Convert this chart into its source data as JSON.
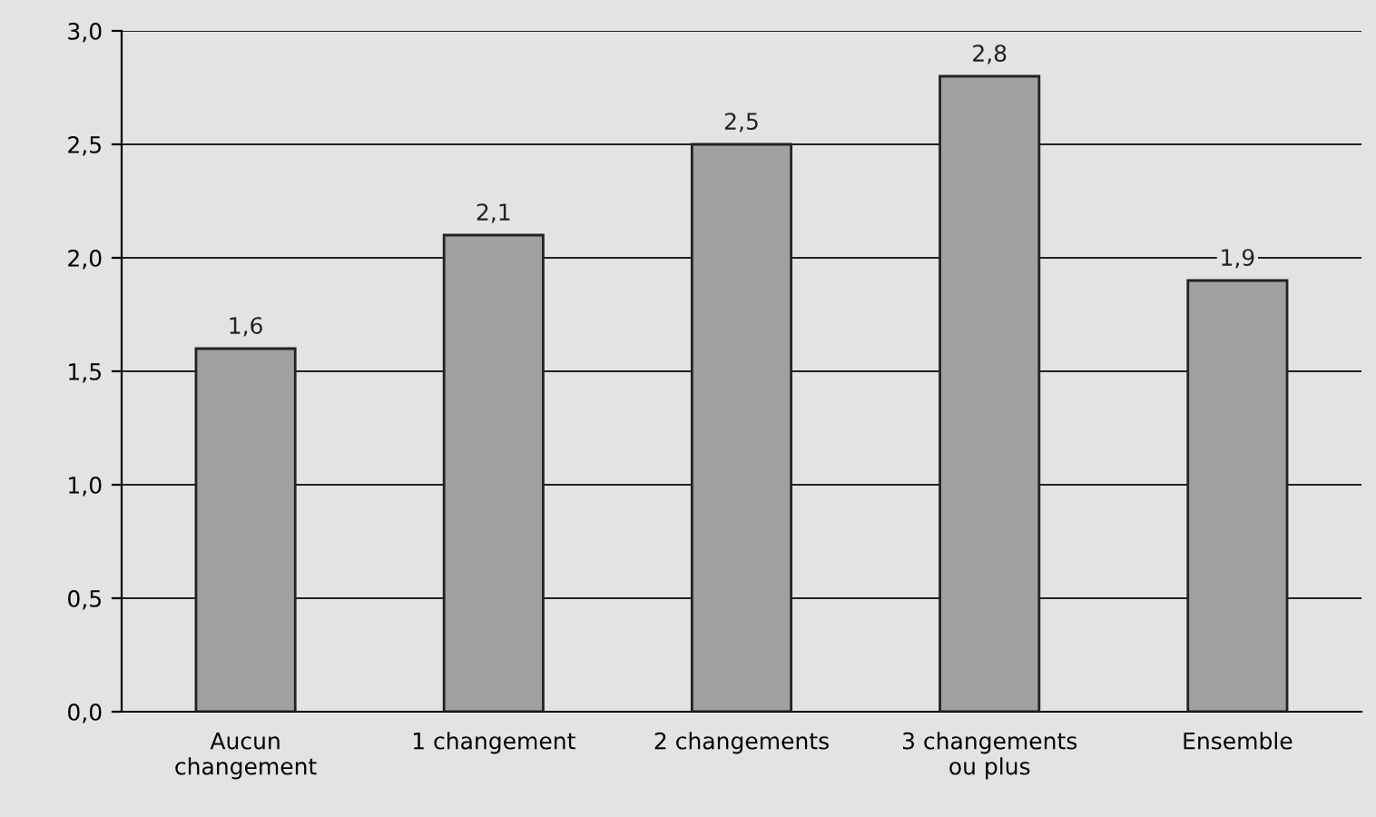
{
  "chart_data": {
    "type": "bar",
    "categories": [
      "Aucun\nchangement",
      "1 changement",
      "2 changements",
      "3 changements\nou plus",
      "Ensemble"
    ],
    "values": [
      1.6,
      2.1,
      2.5,
      2.8,
      1.9
    ],
    "value_labels": [
      "1,6",
      "2,1",
      "2,5",
      "2,8",
      "1,9"
    ],
    "color": "#a0a0a0",
    "ylim": [
      0,
      3
    ],
    "yticks": [
      {
        "value": 0,
        "label": "0,0"
      },
      {
        "value": 0.5,
        "label": "0,5"
      },
      {
        "value": 1,
        "label": "1,0"
      },
      {
        "value": 1.5,
        "label": "1,5"
      },
      {
        "value": 2,
        "label": "2,0"
      },
      {
        "value": 2.5,
        "label": "2,5"
      },
      {
        "value": 3,
        "label": "3,0"
      }
    ],
    "grid": "y",
    "legend": false
  }
}
